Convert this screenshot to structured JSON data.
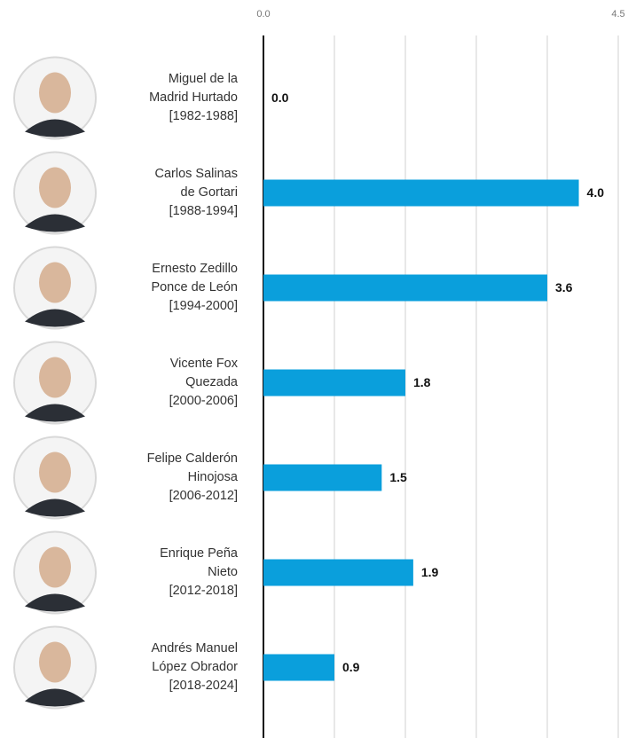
{
  "chart_data": {
    "type": "barh",
    "categories": [
      "Miguel de la\nMadrid Hurtado\n[1982-1988]",
      "Carlos Salinas\nde Gortari\n[1988-1994]",
      "Ernesto Zedillo\nPonce de León\n[1994-2000]",
      "Vicente Fox\nQuezada\n[2000-2006]",
      "Felipe Calderón\nHinojosa\n[2006-2012]",
      "Enrique Peña\nNieto\n[2012-2018]",
      "Andrés Manuel\nLópez Obrador\n[2018-2024]"
    ],
    "values": [
      0.0,
      4.0,
      3.6,
      1.8,
      1.5,
      1.9,
      0.9
    ],
    "value_labels": [
      "0.0",
      "4.0",
      "3.6",
      "1.8",
      "1.5",
      "1.9",
      "0.9"
    ],
    "color": "#0a9fdc",
    "xlim": [
      0,
      4.5
    ],
    "xticks": [
      {
        "value": 0,
        "label": "0.0"
      },
      4.5
    ],
    "xgrid": [
      0.9,
      1.8,
      2.7,
      3.6,
      4.5
    ],
    "grid": true
  }
}
